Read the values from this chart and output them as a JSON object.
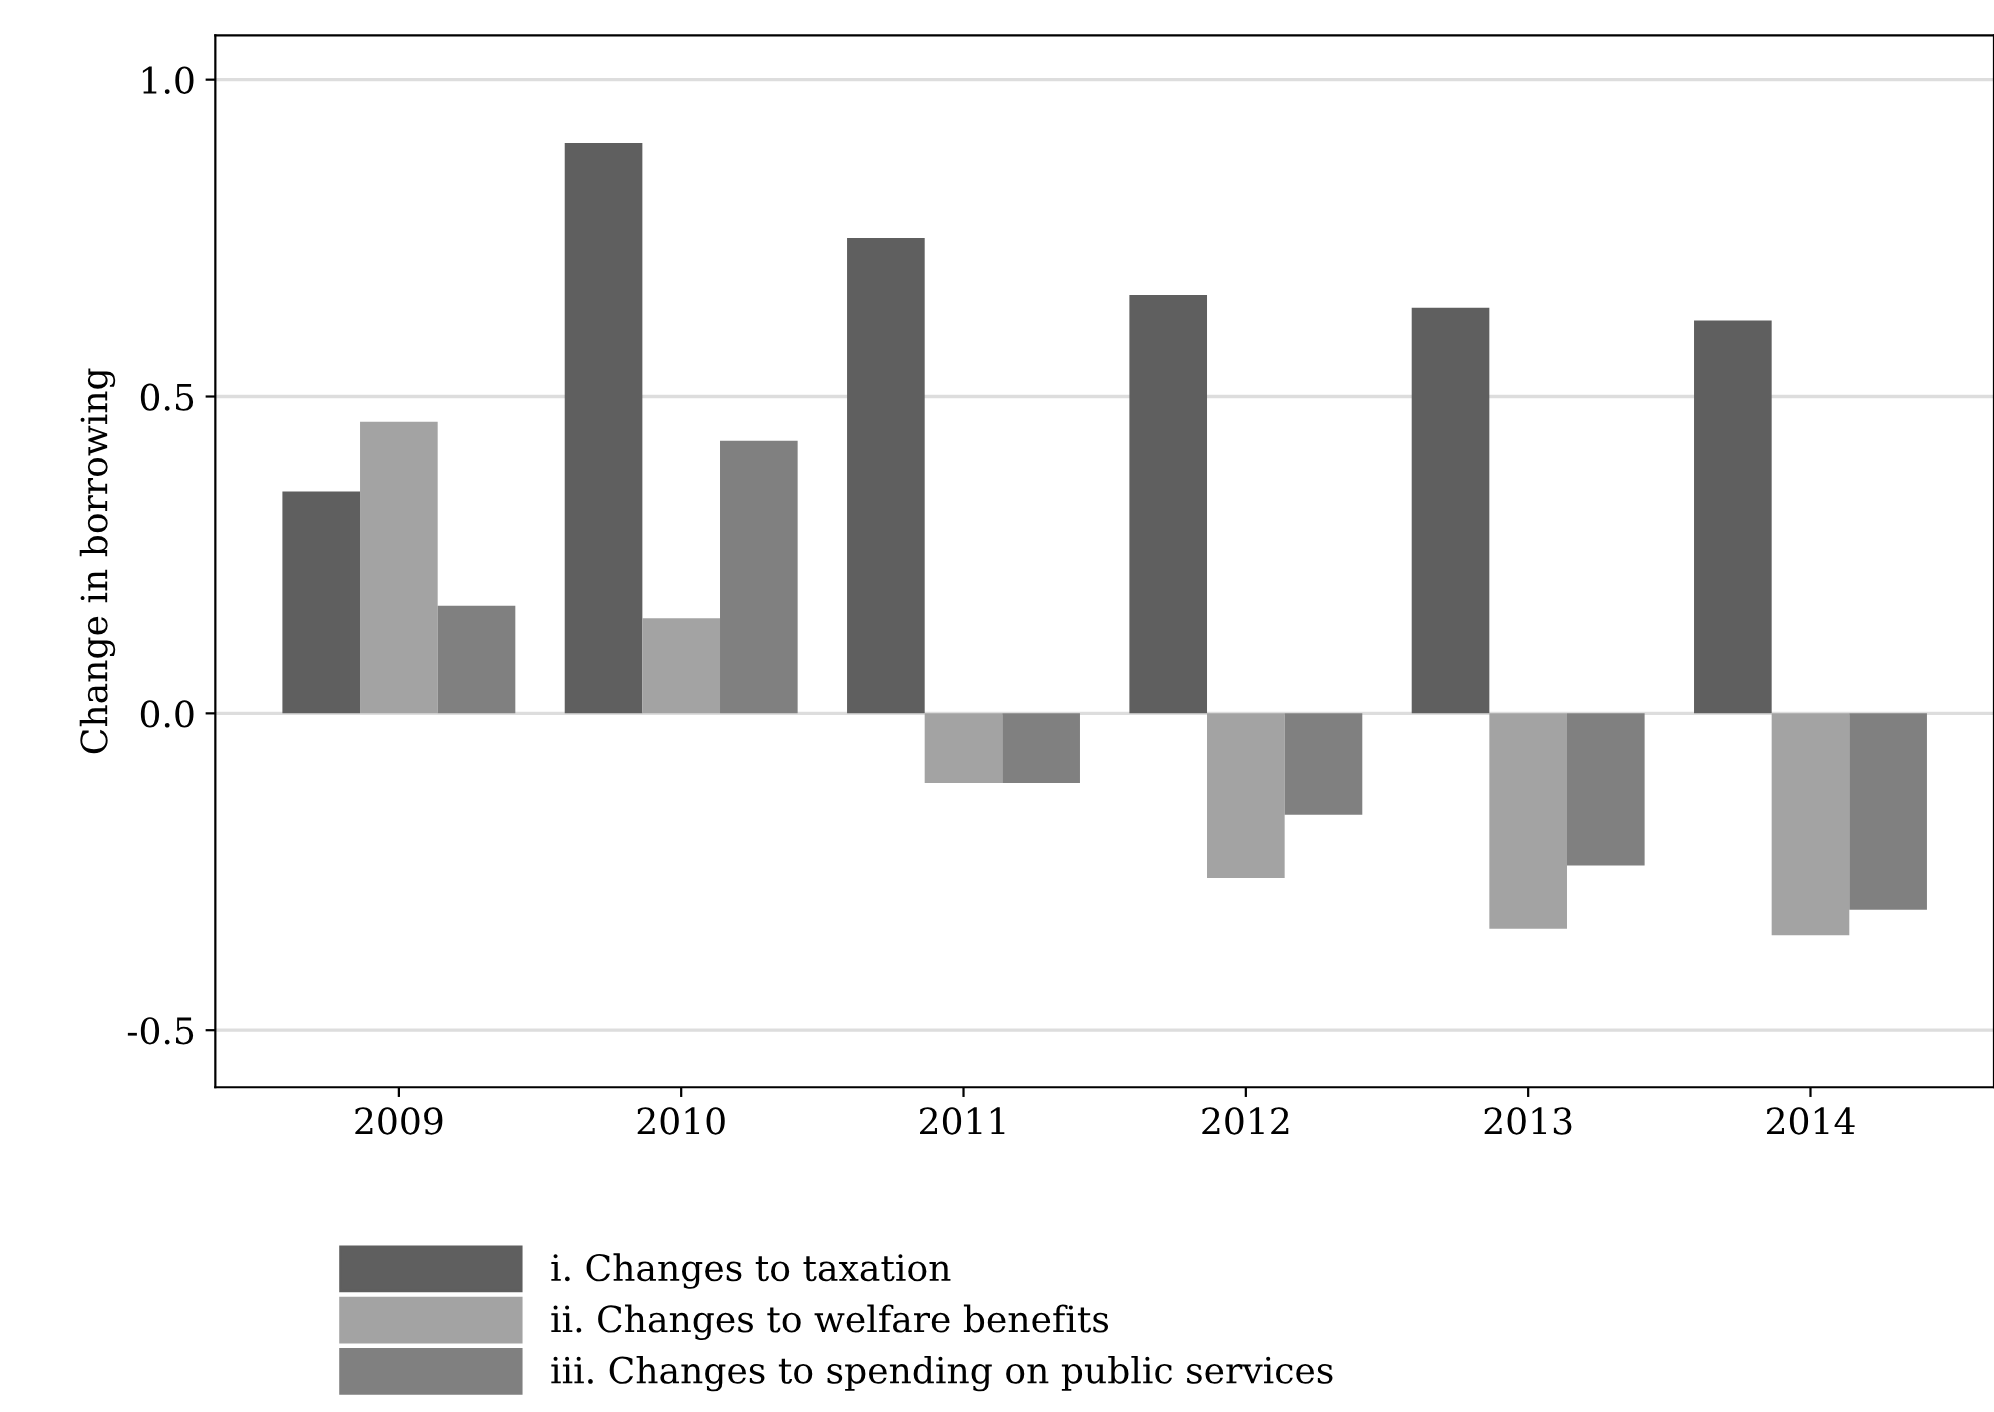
{
  "chart_data": {
    "type": "bar",
    "ylabel": "Change in borrowing",
    "categories": [
      "2009",
      "2010",
      "2011",
      "2012",
      "2013",
      "2014"
    ],
    "series": [
      {
        "name": "i. Changes to taxation",
        "color": "#5f5f5f",
        "values": [
          0.35,
          0.9,
          0.75,
          0.66,
          0.64,
          0.62
        ]
      },
      {
        "name": "ii. Changes to welfare benefits",
        "color": "#a3a3a3",
        "values": [
          0.46,
          0.15,
          -0.11,
          -0.26,
          -0.34,
          -0.35
        ]
      },
      {
        "name": "iii. Changes to spending on public services",
        "color": "#808080",
        "values": [
          0.17,
          0.43,
          -0.11,
          -0.16,
          -0.24,
          -0.31
        ]
      }
    ],
    "ylim": [
      -0.59,
      1.07
    ],
    "yticks": [
      {
        "value": -0.5,
        "label": "-0.5"
      },
      {
        "value": 0.0,
        "label": "0.0"
      },
      {
        "value": 0.5,
        "label": "0.5"
      },
      {
        "value": 1.0,
        "label": "1.0"
      }
    ],
    "grid": "y",
    "legend": "bottom"
  }
}
